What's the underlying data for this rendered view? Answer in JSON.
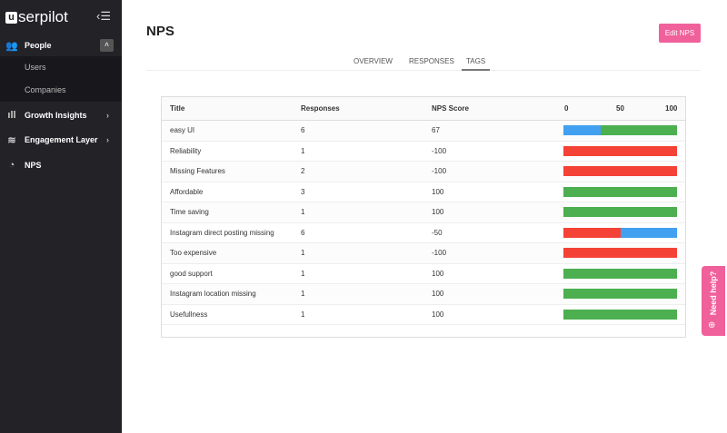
{
  "sidebar": {
    "logo": "userpilot",
    "logo_letter": "u",
    "items": [
      {
        "label": "People",
        "icon": "people-icon",
        "expanded": true,
        "children": [
          "Users",
          "Companies"
        ]
      },
      {
        "label": "Growth Insights",
        "icon": "bar-chart-icon"
      },
      {
        "label": "Engagement Layer",
        "icon": "layers-icon"
      },
      {
        "label": "NPS",
        "icon": "pie-chart-icon"
      }
    ]
  },
  "header": {
    "title": "NPS",
    "edit_button": "Edit NPS"
  },
  "tabs": [
    {
      "label": "OVERVIEW"
    },
    {
      "label": "RESPONSES"
    },
    {
      "label": "TAGS",
      "active": true
    }
  ],
  "table": {
    "columns": [
      "Title",
      "Responses",
      "NPS Score"
    ],
    "bar_axis": [
      "0",
      "50",
      "100"
    ],
    "colors": {
      "promoters": "#4caf50",
      "passives": "#42a0f0",
      "detractors": "#f44336"
    },
    "rows": [
      {
        "title": "easy UI",
        "responses": "6",
        "score": "67",
        "bar": [
          0,
          33,
          67
        ]
      },
      {
        "title": "Reliability",
        "responses": "1",
        "score": "-100",
        "bar": [
          100,
          0,
          0
        ]
      },
      {
        "title": "Missing Features",
        "responses": "2",
        "score": "-100",
        "bar": [
          100,
          0,
          0
        ]
      },
      {
        "title": "Affordable",
        "responses": "3",
        "score": "100",
        "bar": [
          0,
          0,
          100
        ]
      },
      {
        "title": "Time saving",
        "responses": "1",
        "score": "100",
        "bar": [
          0,
          0,
          100
        ]
      },
      {
        "title": "Instagram direct posting missing",
        "responses": "6",
        "score": "-50",
        "bar": [
          50,
          50,
          0
        ]
      },
      {
        "title": "Too expensive",
        "responses": "1",
        "score": "-100",
        "bar": [
          100,
          0,
          0
        ]
      },
      {
        "title": "good support",
        "responses": "1",
        "score": "100",
        "bar": [
          0,
          0,
          100
        ]
      },
      {
        "title": "Instagram location missing",
        "responses": "1",
        "score": "100",
        "bar": [
          0,
          0,
          100
        ]
      },
      {
        "title": "Usefullness",
        "responses": "1",
        "score": "100",
        "bar": [
          0,
          0,
          100
        ]
      }
    ]
  },
  "help": {
    "label": "Need help?"
  }
}
